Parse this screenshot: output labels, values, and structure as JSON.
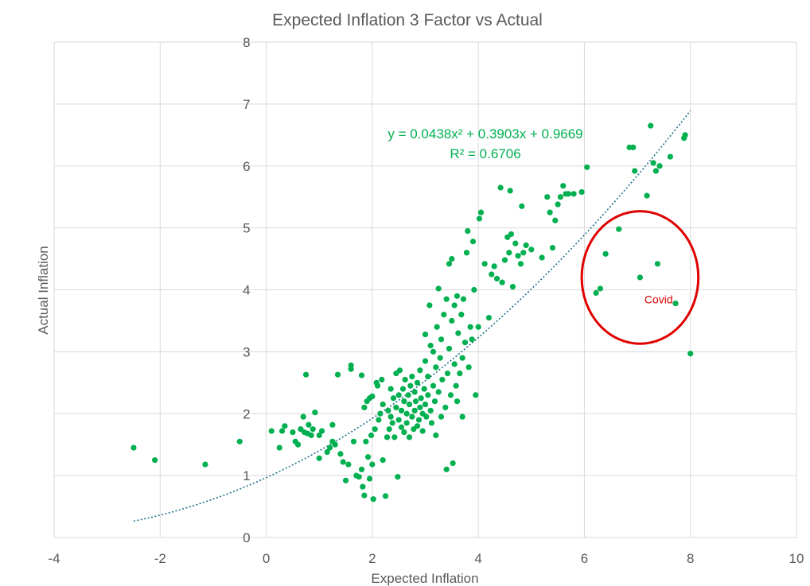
{
  "chart_data": {
    "type": "scatter",
    "title": "Expected Inflation 3 Factor vs Actual",
    "xlabel": "Expected Inflation",
    "ylabel": "Actual Inflation",
    "xlim": [
      -4,
      10
    ],
    "ylim": [
      0,
      8
    ],
    "x_ticks": [
      "-4",
      "-2",
      "0",
      "2",
      "4",
      "6",
      "8",
      "10"
    ],
    "y_ticks": [
      "0",
      "1",
      "2",
      "3",
      "4",
      "5",
      "6",
      "7",
      "8"
    ],
    "grid": true,
    "legend": "none",
    "colors": {
      "points": "#00b050",
      "trendline": "#1f6f8b",
      "annotation": "#e00000",
      "grid": "#d9d9d9"
    },
    "trendline": {
      "type": "polynomial",
      "equation": "y = 0.0438x² + 0.3903x + 0.9669",
      "r_squared": "R² = 0.6706",
      "coefficients": [
        0.0438,
        0.3903,
        0.9669
      ],
      "x_range": [
        -2.5,
        8
      ]
    },
    "annotation": {
      "label": "Covid",
      "center": [
        7.05,
        4.2
      ],
      "radius_x": 1.1,
      "radius_y": 1.07
    },
    "points": [
      [
        -2.5,
        1.45
      ],
      [
        -2.1,
        1.25
      ],
      [
        -1.15,
        1.18
      ],
      [
        -0.5,
        1.55
      ],
      [
        0.1,
        1.72
      ],
      [
        0.25,
        1.45
      ],
      [
        0.3,
        1.72
      ],
      [
        0.35,
        1.8
      ],
      [
        0.5,
        1.7
      ],
      [
        0.55,
        1.55
      ],
      [
        0.6,
        1.5
      ],
      [
        0.65,
        1.75
      ],
      [
        0.7,
        1.95
      ],
      [
        0.72,
        1.7
      ],
      [
        0.75,
        2.63
      ],
      [
        0.78,
        1.68
      ],
      [
        0.8,
        1.82
      ],
      [
        0.85,
        1.65
      ],
      [
        0.88,
        1.75
      ],
      [
        0.92,
        2.02
      ],
      [
        1,
        1.65
      ],
      [
        1.0,
        1.28
      ],
      [
        1.05,
        1.72
      ],
      [
        1.15,
        1.38
      ],
      [
        1.2,
        1.45
      ],
      [
        1.25,
        1.82
      ],
      [
        1.25,
        1.55
      ],
      [
        1.3,
        1.5
      ],
      [
        1.35,
        2.63
      ],
      [
        1.4,
        1.35
      ],
      [
        1.45,
        1.22
      ],
      [
        1.5,
        0.92
      ],
      [
        1.55,
        1.18
      ],
      [
        1.6,
        2.72
      ],
      [
        1.6,
        2.78
      ],
      [
        1.65,
        1.55
      ],
      [
        1.7,
        1.0
      ],
      [
        1.75,
        0.98
      ],
      [
        1.8,
        2.62
      ],
      [
        1.8,
        1.1
      ],
      [
        1.82,
        0.82
      ],
      [
        1.85,
        2.1
      ],
      [
        1.85,
        0.68
      ],
      [
        1.88,
        1.55
      ],
      [
        1.9,
        2.2
      ],
      [
        1.92,
        1.3
      ],
      [
        1.95,
        2.25
      ],
      [
        1.95,
        0.95
      ],
      [
        1.98,
        1.65
      ],
      [
        2.0,
        2.28
      ],
      [
        2.0,
        1.18
      ],
      [
        2.02,
        0.62
      ],
      [
        2.05,
        1.75
      ],
      [
        2.08,
        2.5
      ],
      [
        2.1,
        2.45
      ],
      [
        2.12,
        1.9
      ],
      [
        2.15,
        2.0
      ],
      [
        2.18,
        2.55
      ],
      [
        2.2,
        1.25
      ],
      [
        2.2,
        2.15
      ],
      [
        2.25,
        0.67
      ],
      [
        2.28,
        1.62
      ],
      [
        2.3,
        2.05
      ],
      [
        2.32,
        1.75
      ],
      [
        2.35,
        1.95
      ],
      [
        2.35,
        2.4
      ],
      [
        2.38,
        1.85
      ],
      [
        2.4,
        2.25
      ],
      [
        2.42,
        1.62
      ],
      [
        2.45,
        2.1
      ],
      [
        2.45,
        2.65
      ],
      [
        2.48,
        0.98
      ],
      [
        2.5,
        1.9
      ],
      [
        2.5,
        2.3
      ],
      [
        2.52,
        2.7
      ],
      [
        2.55,
        1.78
      ],
      [
        2.55,
        2.05
      ],
      [
        2.58,
        2.4
      ],
      [
        2.6,
        1.7
      ],
      [
        2.6,
        2.2
      ],
      [
        2.62,
        2.55
      ],
      [
        2.65,
        1.85
      ],
      [
        2.65,
        2.0
      ],
      [
        2.68,
        2.3
      ],
      [
        2.7,
        1.62
      ],
      [
        2.7,
        2.15
      ],
      [
        2.72,
        2.45
      ],
      [
        2.75,
        1.95
      ],
      [
        2.75,
        2.6
      ],
      [
        2.78,
        1.75
      ],
      [
        2.8,
        2.05
      ],
      [
        2.8,
        2.35
      ],
      [
        2.82,
        2.2
      ],
      [
        2.85,
        1.8
      ],
      [
        2.85,
        2.5
      ],
      [
        2.88,
        1.9
      ],
      [
        2.9,
        2.1
      ],
      [
        2.9,
        2.7
      ],
      [
        2.92,
        2.25
      ],
      [
        2.95,
        1.72
      ],
      [
        2.95,
        2.0
      ],
      [
        2.98,
        2.4
      ],
      [
        3.0,
        2.15
      ],
      [
        3.0,
        2.85
      ],
      [
        3.0,
        3.28
      ],
      [
        3.02,
        1.95
      ],
      [
        3.05,
        2.3
      ],
      [
        3.05,
        2.6
      ],
      [
        3.08,
        3.75
      ],
      [
        3.1,
        2.05
      ],
      [
        3.1,
        3.1
      ],
      [
        3.12,
        1.85
      ],
      [
        3.15,
        2.45
      ],
      [
        3.15,
        3.0
      ],
      [
        3.18,
        2.2
      ],
      [
        3.2,
        1.65
      ],
      [
        3.2,
        2.75
      ],
      [
        3.22,
        3.4
      ],
      [
        3.25,
        2.35
      ],
      [
        3.25,
        4.02
      ],
      [
        3.28,
        2.9
      ],
      [
        3.3,
        1.95
      ],
      [
        3.3,
        3.2
      ],
      [
        3.32,
        2.55
      ],
      [
        3.35,
        3.6
      ],
      [
        3.38,
        2.1
      ],
      [
        3.4,
        3.85
      ],
      [
        3.4,
        1.1
      ],
      [
        3.42,
        2.65
      ],
      [
        3.45,
        3.05
      ],
      [
        3.45,
        4.42
      ],
      [
        3.48,
        2.3
      ],
      [
        3.5,
        3.5
      ],
      [
        3.5,
        4.5
      ],
      [
        3.52,
        1.2
      ],
      [
        3.55,
        2.8
      ],
      [
        3.55,
        3.75
      ],
      [
        3.58,
        2.45
      ],
      [
        3.6,
        3.9
      ],
      [
        3.6,
        2.2
      ],
      [
        3.62,
        3.3
      ],
      [
        3.65,
        2.65
      ],
      [
        3.68,
        3.6
      ],
      [
        3.7,
        1.95
      ],
      [
        3.7,
        2.9
      ],
      [
        3.72,
        3.85
      ],
      [
        3.75,
        3.15
      ],
      [
        3.78,
        4.6
      ],
      [
        3.8,
        4.95
      ],
      [
        3.82,
        2.75
      ],
      [
        3.85,
        3.4
      ],
      [
        3.88,
        3.2
      ],
      [
        3.9,
        4.78
      ],
      [
        3.92,
        4.0
      ],
      [
        3.95,
        2.3
      ],
      [
        4.0,
        3.4
      ],
      [
        4.02,
        5.15
      ],
      [
        4.05,
        5.25
      ],
      [
        4.12,
        4.42
      ],
      [
        4.2,
        3.55
      ],
      [
        4.25,
        4.25
      ],
      [
        4.3,
        4.38
      ],
      [
        4.35,
        4.18
      ],
      [
        4.42,
        5.65
      ],
      [
        4.45,
        4.12
      ],
      [
        4.5,
        4.48
      ],
      [
        4.55,
        4.85
      ],
      [
        4.58,
        4.6
      ],
      [
        4.6,
        5.6
      ],
      [
        4.62,
        4.9
      ],
      [
        4.65,
        4.05
      ],
      [
        4.7,
        4.75
      ],
      [
        4.75,
        4.55
      ],
      [
        4.8,
        4.42
      ],
      [
        4.82,
        5.35
      ],
      [
        4.85,
        4.6
      ],
      [
        4.9,
        4.72
      ],
      [
        5.0,
        4.65
      ],
      [
        5.2,
        4.52
      ],
      [
        5.3,
        5.5
      ],
      [
        5.35,
        5.25
      ],
      [
        5.4,
        4.68
      ],
      [
        5.45,
        5.12
      ],
      [
        5.5,
        5.38
      ],
      [
        5.55,
        5.5
      ],
      [
        5.6,
        5.68
      ],
      [
        5.65,
        5.55
      ],
      [
        5.7,
        5.55
      ],
      [
        5.8,
        5.55
      ],
      [
        5.95,
        5.58
      ],
      [
        6.05,
        5.98
      ],
      [
        6.22,
        3.95
      ],
      [
        6.3,
        4.02
      ],
      [
        6.4,
        4.58
      ],
      [
        6.65,
        4.98
      ],
      [
        6.85,
        6.3
      ],
      [
        6.92,
        6.3
      ],
      [
        6.95,
        5.92
      ],
      [
        7.05,
        4.2
      ],
      [
        7.18,
        5.52
      ],
      [
        7.25,
        6.65
      ],
      [
        7.3,
        6.05
      ],
      [
        7.35,
        5.92
      ],
      [
        7.38,
        4.42
      ],
      [
        7.42,
        6.0
      ],
      [
        7.62,
        6.15
      ],
      [
        7.72,
        3.78
      ],
      [
        7.88,
        6.45
      ],
      [
        7.9,
        6.5
      ],
      [
        8.0,
        2.97
      ]
    ]
  }
}
